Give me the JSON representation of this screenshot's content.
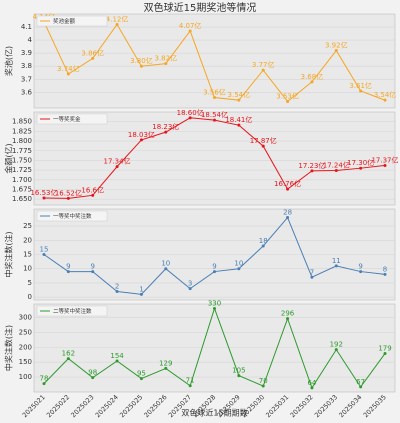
{
  "title": "双色球近15期奖池等情况",
  "chart_data": [
    {
      "type": "line",
      "ylabel": "奖池(亿)",
      "series": [
        {
          "name": "奖池金额",
          "color": "#f5a623",
          "values": [
            4.14,
            3.74,
            3.86,
            4.12,
            3.8,
            3.82,
            4.07,
            3.56,
            3.54,
            3.77,
            3.53,
            3.68,
            3.92,
            3.61,
            3.54
          ],
          "value_labels": [
            "4.14亿",
            "3.74亿",
            "3.86亿",
            "4.12亿",
            "3.80亿",
            "3.82亿",
            "4.07亿",
            "3.56亿",
            "3.54亿",
            "3.77亿",
            "3.53亿",
            "3.68亿",
            "3.92亿",
            "3.61亿",
            "3.54亿"
          ]
        }
      ],
      "ylim": [
        3.48,
        4.2
      ],
      "yticks": [
        3.6,
        3.7,
        3.8,
        3.9,
        4.0,
        4.1
      ],
      "grid": true
    },
    {
      "type": "line",
      "ylabel": "金额(亿)",
      "series": [
        {
          "name": "一等奖奖金",
          "color": "#e8141b",
          "values": [
            16.53,
            16.52,
            16.6,
            17.34,
            18.03,
            18.23,
            18.6,
            18.54,
            18.41,
            17.87,
            16.76,
            17.23,
            17.24,
            17.3,
            17.37
          ],
          "value_labels": [
            "16.53亿",
            "16.52亿",
            "16.6亿",
            "17.34亿",
            "18.03亿",
            "18.23亿",
            "18.60亿",
            "18.54亿",
            "18.41亿",
            "17.87亿",
            "16.76亿",
            "17.23亿",
            "17.24亿",
            "17.30亿",
            "17.37亿"
          ]
        }
      ],
      "ylim": [
        16.35,
        18.75
      ],
      "yticks": [
        {
          "value": 16.5,
          "label": "1.650"
        },
        {
          "value": 16.75,
          "label": "1.675"
        },
        {
          "value": 17.0,
          "label": "1.700"
        },
        {
          "value": 17.25,
          "label": "1.725"
        },
        {
          "value": 17.5,
          "label": "1.750"
        },
        {
          "value": 17.75,
          "label": "1.775"
        },
        {
          "value": 18.0,
          "label": "1.800"
        },
        {
          "value": 18.25,
          "label": "1.825"
        },
        {
          "value": 18.5,
          "label": "1.850"
        }
      ],
      "grid": true
    },
    {
      "type": "line",
      "ylabel": "中奖注数(注)",
      "series": [
        {
          "name": "一等奖中奖注数",
          "color": "#4a7fb5",
          "values": [
            15,
            9,
            9,
            2,
            1,
            10,
            3,
            9,
            10,
            18,
            28,
            7,
            11,
            9,
            8
          ]
        }
      ],
      "ylim": [
        -1,
        31
      ],
      "yticks": [
        0,
        5,
        10,
        15,
        20,
        25
      ],
      "grid": true
    },
    {
      "type": "line",
      "ylabel": "中奖注数(注)",
      "xlabel": "双色球近15期期数",
      "categories": [
        "2025021",
        "2025022",
        "2025023",
        "2025024",
        "2025025",
        "2025026",
        "2025027",
        "2025028",
        "2025029",
        "2025030",
        "2025031",
        "2025032",
        "2025033",
        "2025034",
        "2025035"
      ],
      "series": [
        {
          "name": "二等奖中奖注数",
          "color": "#2e9a2e",
          "values": [
            78,
            162,
            98,
            154,
            95,
            129,
            71,
            330,
            105,
            70,
            296,
            64,
            192,
            67,
            179
          ]
        }
      ],
      "ylim": [
        50,
        345
      ],
      "yticks": [
        100,
        150,
        200,
        250,
        300
      ],
      "grid": true
    }
  ]
}
